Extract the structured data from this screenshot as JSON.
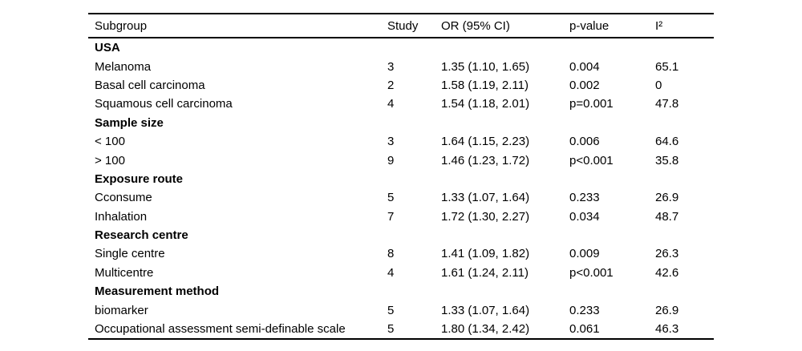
{
  "table": {
    "columns": [
      "Subgroup",
      "Study",
      "OR (95% CI)",
      "p-value",
      "I²"
    ],
    "sections": [
      {
        "header": "USA",
        "rows": [
          [
            "Melanoma",
            "3",
            "1.35 (1.10, 1.65)",
            "0.004",
            "65.1"
          ],
          [
            "Basal cell carcinoma",
            "2",
            "1.58 (1.19, 2.11)",
            "0.002",
            "0"
          ],
          [
            "Squamous cell carcinoma",
            "4",
            "1.54 (1.18, 2.01)",
            "p=0.001",
            "47.8"
          ]
        ]
      },
      {
        "header": "Sample size",
        "rows": [
          [
            "< 100",
            "3",
            "1.64 (1.15, 2.23)",
            "0.006",
            "64.6"
          ],
          [
            "> 100",
            "9",
            "1.46 (1.23, 1.72)",
            "p<0.001",
            "35.8"
          ]
        ]
      },
      {
        "header": "Exposure route",
        "rows": [
          [
            "Cconsume",
            "5",
            "1.33 (1.07, 1.64)",
            "0.233",
            "26.9"
          ],
          [
            "Inhalation",
            "7",
            "1.72 (1.30, 2.27)",
            "0.034",
            "48.7"
          ]
        ]
      },
      {
        "header": "Research centre",
        "rows": [
          [
            "Single centre",
            "8",
            "1.41 (1.09, 1.82)",
            "0.009",
            "26.3"
          ],
          [
            "Multicentre",
            "4",
            "1.61 (1.24, 2.11)",
            "p<0.001",
            "42.6"
          ]
        ]
      },
      {
        "header": "Measurement method",
        "rows": [
          [
            "biomarker",
            "5",
            "1.33 (1.07, 1.64)",
            "0.233",
            "26.9"
          ],
          [
            "Occupational assessment semi-definable scale",
            "5",
            "1.80 (1.34, 2.42)",
            "0.061",
            "46.3"
          ]
        ]
      }
    ],
    "colors": {
      "text": "#000000",
      "rule": "#000000",
      "background": "#ffffff"
    }
  }
}
